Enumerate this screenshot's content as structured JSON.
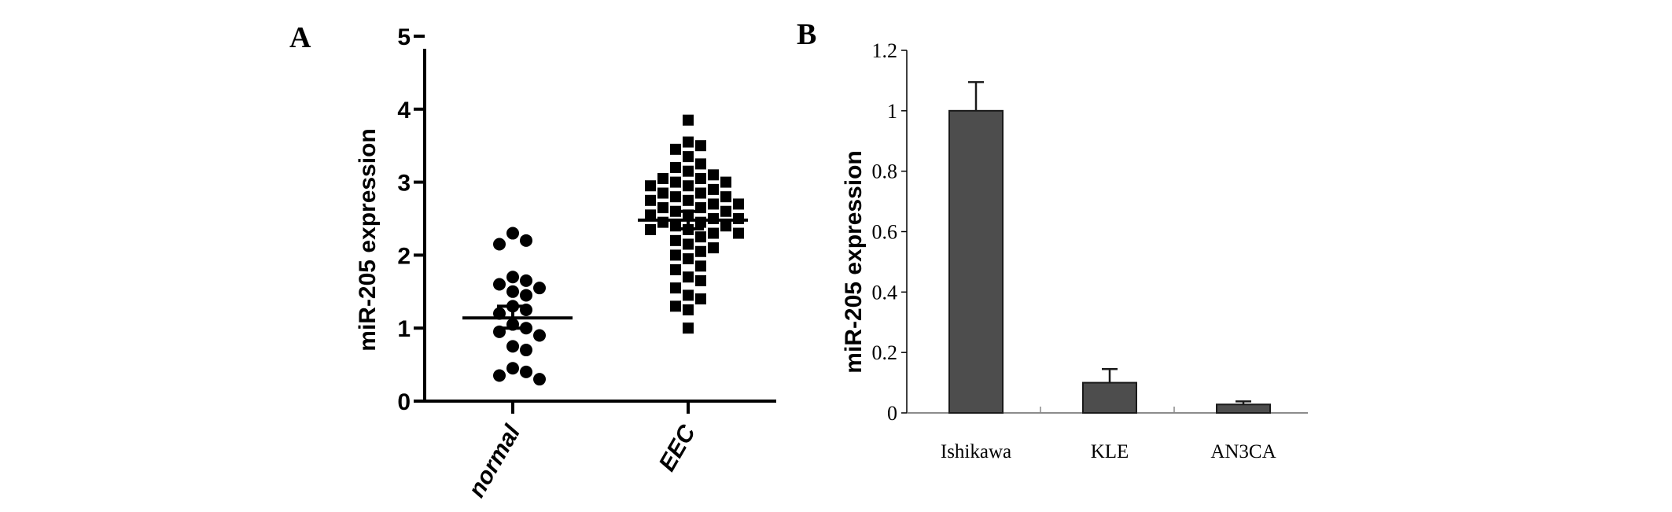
{
  "chart_data": [
    {
      "panel": "A",
      "type": "scatter",
      "ylabel": "miR-205 expression",
      "ylim": [
        0,
        5
      ],
      "yticks": [
        "0",
        "1",
        "2",
        "3",
        "4",
        "5"
      ],
      "categories": [
        "normal",
        "EEC"
      ],
      "series": [
        {
          "category": "normal",
          "marker": "circle",
          "color": "#000000",
          "values": [
            2.3,
            2.2,
            2.15,
            1.7,
            1.65,
            1.6,
            1.55,
            1.5,
            1.45,
            1.3,
            1.25,
            1.2,
            1.05,
            1.0,
            0.95,
            0.9,
            0.75,
            0.7,
            0.45,
            0.4,
            0.35,
            0.3
          ],
          "mean": 1.14,
          "sem_upper": 1.3,
          "sem_lower": 1.0
        },
        {
          "category": "EEC",
          "marker": "square",
          "color": "#000000",
          "values": [
            3.85,
            3.55,
            3.5,
            3.45,
            3.35,
            3.25,
            3.2,
            3.15,
            3.1,
            3.05,
            3.05,
            3.0,
            3.0,
            2.95,
            2.95,
            2.9,
            2.85,
            2.85,
            2.8,
            2.8,
            2.75,
            2.75,
            2.7,
            2.7,
            2.65,
            2.65,
            2.6,
            2.6,
            2.55,
            2.55,
            2.5,
            2.5,
            2.45,
            2.45,
            2.4,
            2.4,
            2.35,
            2.35,
            2.3,
            2.3,
            2.25,
            2.2,
            2.15,
            2.1,
            2.05,
            2.0,
            1.95,
            1.85,
            1.8,
            1.7,
            1.65,
            1.55,
            1.45,
            1.4,
            1.3,
            1.25,
            1.0
          ],
          "mean": 2.48,
          "sem_upper": 2.6,
          "sem_lower": 2.36
        }
      ]
    },
    {
      "panel": "B",
      "type": "bar",
      "ylabel": "miR-205 expression",
      "ylim": [
        0,
        1.2
      ],
      "yticks": [
        "0",
        "0.2",
        "0.4",
        "0.6",
        "0.8",
        "1",
        "1.2"
      ],
      "categories": [
        "Ishikawa",
        "KLE",
        "AN3CA"
      ],
      "values": [
        1.0,
        0.1,
        0.028
      ],
      "errors": [
        0.095,
        0.045,
        0.01
      ],
      "bar_color": "#4d4d4d"
    }
  ]
}
